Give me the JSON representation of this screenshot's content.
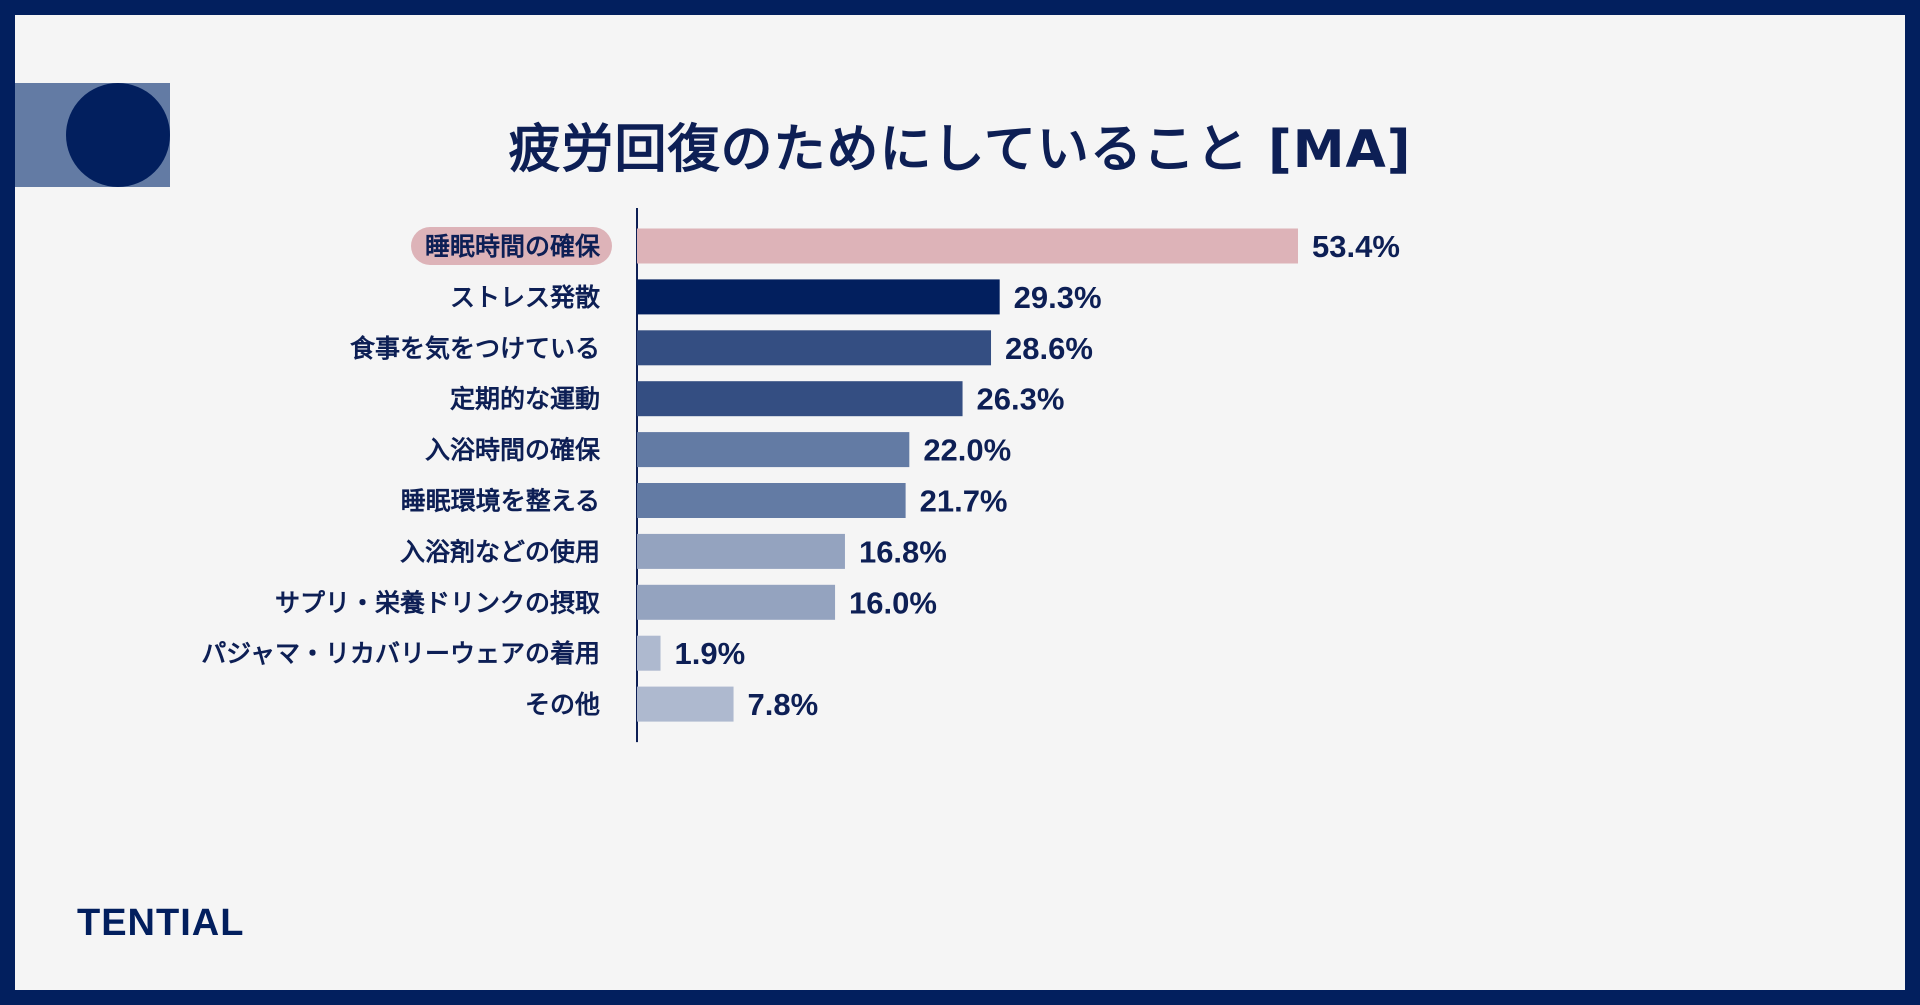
{
  "title": "疲労回復のためにしていること [MA]",
  "brand": "TENTIAL",
  "chart_data": {
    "type": "bar",
    "orientation": "horizontal",
    "title": "疲労回復のためにしていること [MA]",
    "xlabel": "",
    "ylabel": "",
    "xlim": [
      0,
      53.4
    ],
    "value_suffix": "%",
    "highlight_category": "睡眠時間の確保",
    "categories": [
      "睡眠時間の確保",
      "ストレス発散",
      "食事を気をつけている",
      "定期的な運動",
      "入浴時間の確保",
      "睡眠環境を整える",
      "入浴剤などの使用",
      "サプリ・栄養ドリンクの摂取",
      "パジャマ・リカバリーウェアの着用",
      "その他"
    ],
    "values": [
      53.4,
      29.3,
      28.6,
      26.3,
      22.0,
      21.7,
      16.8,
      16.0,
      1.9,
      7.8
    ],
    "labels": [
      "53.4%",
      "29.3%",
      "28.6%",
      "26.3%",
      "22.0%",
      "21.7%",
      "16.8%",
      "16.0%",
      "1.9%",
      "7.8%"
    ],
    "colors": [
      "#ddb3b8",
      "#021f5e",
      "#344e82",
      "#344e82",
      "#637ba4",
      "#637ba4",
      "#94a3bf",
      "#94a3bf",
      "#aeb9cf",
      "#aeb9cf"
    ],
    "highlight_pill_color": "#ddb3b8"
  }
}
